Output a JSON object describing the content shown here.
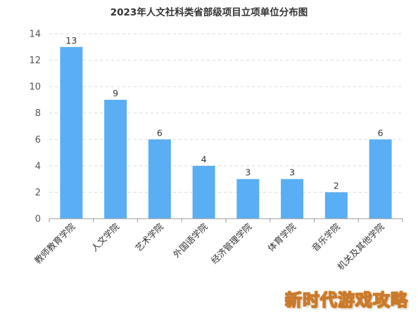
{
  "chart_data": {
    "type": "bar",
    "title": "2023年人文社科类省部级项目立项单位分布图",
    "categories": [
      "教师教育学院",
      "人文学院",
      "艺术学院",
      "外国语学院",
      "经济管理学院",
      "体育学院",
      "音乐学院",
      "机关及其他学院"
    ],
    "values": [
      13,
      9,
      6,
      4,
      3,
      3,
      2,
      6
    ],
    "ylim": [
      0,
      14
    ],
    "yticks": [
      0,
      2,
      4,
      6,
      8,
      10,
      12,
      14
    ],
    "grid": true,
    "legend": "none",
    "bar_color": "#5aaef3",
    "axis_color": "#999999",
    "grid_color": "#d9d9d9",
    "xlabel": "",
    "ylabel": ""
  },
  "watermark": "新时代游戏攻略"
}
